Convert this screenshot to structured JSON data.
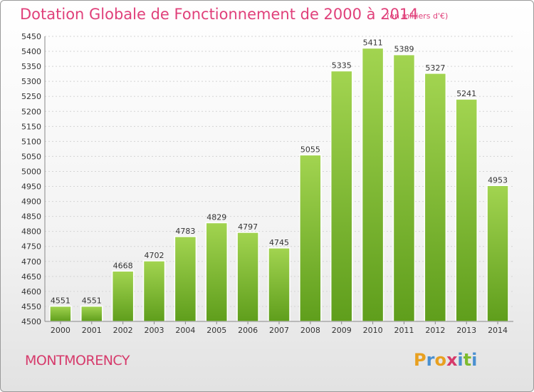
{
  "chart_data": {
    "type": "bar",
    "title": "Dotation Globale de Fonctionnement de 2000 à 2014",
    "unit_label": "(en milliers d'€)",
    "categories": [
      "2000",
      "2001",
      "2002",
      "2003",
      "2004",
      "2005",
      "2006",
      "2007",
      "2008",
      "2009",
      "2010",
      "2011",
      "2012",
      "2013",
      "2014"
    ],
    "values": [
      4551,
      4551,
      4668,
      4702,
      4783,
      4829,
      4797,
      4745,
      5055,
      5335,
      5411,
      5389,
      5327,
      5241,
      4953
    ],
    "ylim": [
      4500,
      5450
    ],
    "yticks": [
      4500,
      4550,
      4600,
      4650,
      4700,
      4750,
      4800,
      4850,
      4900,
      4950,
      5000,
      5050,
      5100,
      5150,
      5200,
      5250,
      5300,
      5350,
      5400,
      5450
    ],
    "grid": true,
    "bar_color": "#7dbb2e"
  },
  "footer": {
    "commune": "MONTMORENCY"
  },
  "logo": {
    "letters": [
      {
        "ch": "P",
        "color": "#e8a020"
      },
      {
        "ch": "r",
        "color": "#4a90d0"
      },
      {
        "ch": "o",
        "color": "#e8a020"
      },
      {
        "ch": "x",
        "color": "#d63a6b"
      },
      {
        "ch": "i",
        "color": "#4a90d0"
      },
      {
        "ch": "t",
        "color": "#7dbb2e"
      },
      {
        "ch": "i",
        "color": "#4a90d0"
      }
    ]
  }
}
